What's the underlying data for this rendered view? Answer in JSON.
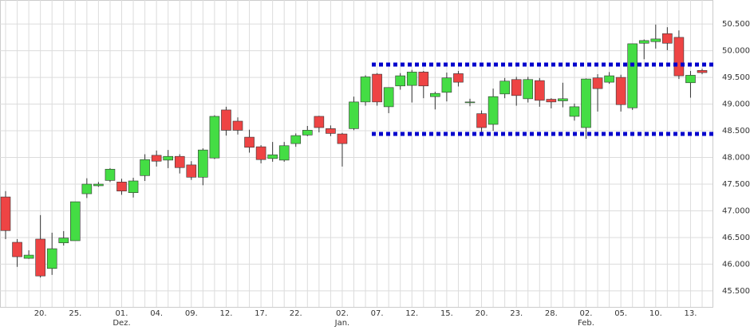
{
  "chart_data": {
    "type": "candlestick",
    "categories": [
      null,
      null,
      null,
      "20.",
      null,
      null,
      "25.",
      null,
      null,
      null,
      "01.",
      null,
      null,
      "04.",
      null,
      null,
      "09.",
      null,
      null,
      "12.",
      null,
      null,
      "17.",
      null,
      null,
      "22.",
      null,
      null,
      null,
      "02.",
      null,
      null,
      "07.",
      null,
      null,
      "12.",
      null,
      null,
      "15.",
      null,
      null,
      "20.",
      null,
      null,
      "23.",
      null,
      null,
      "28.",
      null,
      null,
      "02.",
      null,
      null,
      "05.",
      null,
      null,
      "10.",
      null,
      null,
      "13.",
      null
    ],
    "month_labels": [
      null,
      null,
      null,
      null,
      null,
      null,
      null,
      null,
      null,
      null,
      "Dez.",
      null,
      null,
      null,
      null,
      null,
      null,
      null,
      null,
      null,
      null,
      null,
      null,
      null,
      null,
      null,
      null,
      null,
      null,
      "Jan.",
      null,
      null,
      null,
      null,
      null,
      null,
      null,
      null,
      null,
      null,
      null,
      null,
      null,
      null,
      null,
      null,
      null,
      null,
      null,
      null,
      "Feb.",
      null,
      null,
      null,
      null,
      null,
      null,
      null,
      null,
      null,
      null
    ],
    "open": [
      47260,
      46410,
      46110,
      46470,
      45920,
      46400,
      46440,
      47320,
      47470,
      47570,
      47540,
      47340,
      47660,
      48040,
      47950,
      48020,
      47860,
      47630,
      47990,
      48890,
      48680,
      48380,
      48200,
      47980,
      47950,
      48260,
      48420,
      48770,
      48540,
      48440,
      48540,
      49040,
      49560,
      48950,
      49340,
      49350,
      49600,
      49140,
      49220,
      49570,
      49030,
      48820,
      48620,
      49190,
      49460,
      49100,
      49440,
      49090,
      49060,
      48770,
      48560,
      49490,
      49410,
      49500,
      48930,
      50140,
      50170,
      50320,
      50250,
      49400,
      49630
    ],
    "high": [
      47370,
      46470,
      46260,
      46920,
      46590,
      46620,
      47170,
      47610,
      47540,
      47800,
      47600,
      47620,
      48060,
      48130,
      48140,
      48060,
      47930,
      48170,
      48790,
      48950,
      48750,
      48520,
      48230,
      48290,
      48290,
      48450,
      48590,
      48780,
      48600,
      48460,
      49140,
      49540,
      49580,
      49310,
      49580,
      49640,
      49620,
      49230,
      49590,
      49620,
      49100,
      48880,
      49290,
      49490,
      49510,
      49510,
      49490,
      49110,
      49400,
      49010,
      49480,
      49560,
      49600,
      49550,
      50130,
      50210,
      50490,
      50440,
      50380,
      49620,
      49660
    ],
    "low": [
      46470,
      45950,
      46100,
      45750,
      45800,
      46350,
      46440,
      47240,
      47450,
      47540,
      47300,
      47250,
      47560,
      47830,
      47800,
      47700,
      47580,
      47480,
      47970,
      48410,
      48430,
      48090,
      47890,
      47920,
      47920,
      48200,
      48400,
      48470,
      48400,
      47830,
      48510,
      48970,
      48970,
      48830,
      49270,
      49030,
      49110,
      48900,
      49050,
      49330,
      48960,
      48430,
      48500,
      49110,
      48970,
      49030,
      48950,
      48920,
      48940,
      48690,
      48350,
      48860,
      49380,
      48860,
      48890,
      49840,
      50040,
      50010,
      49470,
      49120,
      49560
    ],
    "close": [
      46630,
      46140,
      46170,
      45780,
      46290,
      46490,
      47170,
      47500,
      47500,
      47780,
      47370,
      47560,
      47960,
      47930,
      48020,
      47810,
      47630,
      48140,
      48770,
      48510,
      48510,
      48190,
      47960,
      48050,
      48220,
      48410,
      48510,
      48560,
      48450,
      48260,
      49040,
      49510,
      49040,
      49310,
      49530,
      49600,
      49340,
      49200,
      49490,
      49410,
      49040,
      48560,
      49140,
      49430,
      49160,
      49460,
      49070,
      49040,
      49100,
      48950,
      49470,
      49290,
      49530,
      48990,
      50130,
      50190,
      50220,
      50140,
      49530,
      49540,
      49590
    ],
    "up_color": "#44dd44",
    "down_color": "#ee4444",
    "horizontal_lines": [
      {
        "value": 49740,
        "color": "#0000cc"
      },
      {
        "value": 48440,
        "color": "#0000cc"
      }
    ],
    "ylim": [
      45200,
      50950
    ],
    "yticks": [
      {
        "value": 45500,
        "label": "45.500"
      },
      {
        "value": 46000,
        "label": "46.000"
      },
      {
        "value": 46500,
        "label": "46.500"
      },
      {
        "value": 47000,
        "label": "47.000"
      },
      {
        "value": 47500,
        "label": "47.500"
      },
      {
        "value": 48000,
        "label": "48.000"
      },
      {
        "value": 48500,
        "label": "48.500"
      },
      {
        "value": 49000,
        "label": "49.000"
      },
      {
        "value": 49500,
        "label": "49.500"
      },
      {
        "value": 50000,
        "label": "50.000"
      },
      {
        "value": 50500,
        "label": "50.500"
      }
    ],
    "grid": true
  }
}
